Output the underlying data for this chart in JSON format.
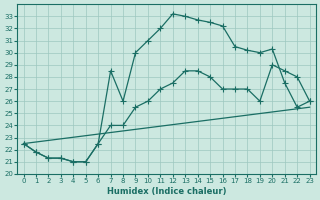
{
  "xlabel": "Humidex (Indice chaleur)",
  "bg_color": "#cce8e0",
  "grid_color": "#9ec8c0",
  "line_color": "#1a6e64",
  "xlim": [
    -0.5,
    23.5
  ],
  "ylim": [
    20,
    34
  ],
  "xticks": [
    0,
    1,
    2,
    3,
    4,
    5,
    6,
    7,
    8,
    9,
    10,
    11,
    12,
    13,
    14,
    15,
    16,
    17,
    18,
    19,
    20,
    21,
    22,
    23
  ],
  "yticks": [
    20,
    21,
    22,
    23,
    24,
    25,
    26,
    27,
    28,
    29,
    30,
    31,
    32,
    33
  ],
  "line1_x": [
    0,
    1,
    2,
    3,
    4,
    5,
    6,
    7,
    8,
    9,
    10,
    11,
    12,
    13,
    14,
    15,
    16,
    17,
    18,
    19,
    20,
    21,
    22,
    23
  ],
  "line1_y": [
    22.5,
    21.8,
    21.3,
    21.3,
    21.0,
    21.0,
    22.5,
    28.5,
    26.0,
    30.0,
    31.0,
    32.0,
    33.2,
    33.0,
    32.7,
    32.5,
    32.2,
    30.5,
    30.2,
    30.0,
    30.3,
    27.5,
    25.5,
    26.0
  ],
  "line2_x": [
    0,
    1,
    2,
    3,
    4,
    5,
    6,
    7,
    8,
    9,
    10,
    11,
    12,
    13,
    14,
    15,
    16,
    17,
    18,
    19,
    20,
    21,
    22,
    23
  ],
  "line2_y": [
    22.5,
    21.8,
    21.3,
    21.3,
    21.0,
    21.0,
    22.5,
    24.0,
    24.0,
    25.5,
    26.0,
    27.0,
    27.5,
    28.5,
    28.5,
    28.0,
    27.0,
    27.0,
    27.0,
    26.0,
    29.0,
    28.5,
    28.0,
    26.0
  ],
  "line3_x": [
    0,
    23
  ],
  "line3_y": [
    22.5,
    25.5
  ]
}
